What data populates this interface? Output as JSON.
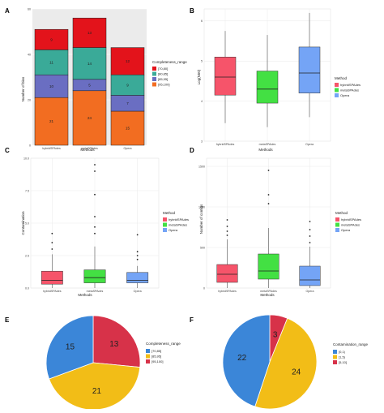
{
  "chart_data": [
    {
      "panel": "A",
      "type": "bar",
      "stacked": true,
      "categories": [
        "hybridSPAdes",
        "metaSPAdes",
        "Opera"
      ],
      "xlabel": "Methods",
      "ylabel": "Number of bins",
      "ylim": [
        0,
        60
      ],
      "yticks": [
        0,
        20,
        40,
        60
      ],
      "legend_title": "Completeness_range",
      "legend_position": "right",
      "series": [
        {
          "name": "[95,100]",
          "color": "#f26d21",
          "values": [
            21,
            24,
            15
          ]
        },
        {
          "name": "[85,95]",
          "color": "#6a6ec2",
          "values": [
            10,
            5,
            7
          ]
        },
        {
          "name": "[80,85]",
          "color": "#3aaa98",
          "values": [
            11,
            14,
            9
          ]
        },
        {
          "name": "[70,80]",
          "color": "#e3131b",
          "values": [
            9,
            13,
            12
          ]
        }
      ]
    },
    {
      "panel": "B",
      "type": "box",
      "categories": [
        "hybridSPAdes",
        "metaSPAdes",
        "Opera"
      ],
      "xlabel": "Methods",
      "ylabel": "Log(N50)",
      "ylim": [
        3,
        6.3
      ],
      "yticks": [
        3,
        4,
        5,
        6
      ],
      "legend_title": "Method",
      "legend_position": "right",
      "boxes": [
        {
          "name": "hybridSPAdes",
          "color": "#f6546a",
          "min": 3.45,
          "q1": 4.15,
          "median": 4.6,
          "q3": 5.1,
          "max": 5.75
        },
        {
          "name": "metaSPAdes",
          "color": "#43e043",
          "min": 3.35,
          "q1": 3.95,
          "median": 4.3,
          "q3": 4.75,
          "max": 5.65
        },
        {
          "name": "Opera",
          "color": "#74a4f6",
          "min": 3.6,
          "q1": 4.2,
          "median": 4.7,
          "q3": 5.35,
          "max": 6.2
        }
      ]
    },
    {
      "panel": "C",
      "type": "box",
      "categories": [
        "hybridSPAdes",
        "metaSPAdes",
        "Opera"
      ],
      "xlabel": "Methods",
      "ylabel": "Contamination",
      "ylim": [
        0,
        10
      ],
      "yticks": [
        "0.0",
        "2.5",
        "5.0",
        "7.5",
        "10.0"
      ],
      "legend_title": "Method",
      "legend_position": "right",
      "boxes": [
        {
          "name": "hybridSPAdes",
          "color": "#f6546a",
          "min": 0,
          "q1": 0.3,
          "median": 0.6,
          "q3": 1.3,
          "max": 2.6,
          "outliers": [
            3.0,
            3.5,
            4.2
          ]
        },
        {
          "name": "metaSPAdes",
          "color": "#43e043",
          "min": 0,
          "q1": 0.4,
          "median": 0.8,
          "q3": 1.4,
          "max": 3.2,
          "outliers": [
            4.2,
            4.7,
            5.5,
            7.2,
            9.0,
            9.5
          ]
        },
        {
          "name": "Opera",
          "color": "#74a4f6",
          "min": 0,
          "q1": 0.4,
          "median": 0.6,
          "q3": 1.2,
          "max": 1.7,
          "outliers": [
            2.2,
            2.5,
            2.8,
            4.1
          ]
        }
      ]
    },
    {
      "panel": "D",
      "type": "box",
      "categories": [
        "hybridSPAdes",
        "metaSPAdes",
        "Opera"
      ],
      "xlabel": "Methods",
      "ylabel": "Number of contigs",
      "ylim": [
        0,
        1600
      ],
      "yticks": [
        0,
        500,
        1000,
        1500
      ],
      "legend_title": "Method",
      "legend_position": "right",
      "boxes": [
        {
          "name": "hybridSPAdes",
          "color": "#f6546a",
          "min": 0,
          "q1": 70,
          "median": 170,
          "q3": 290,
          "max": 600,
          "outliers": [
            650,
            700,
            760,
            840
          ]
        },
        {
          "name": "metaSPAdes",
          "color": "#43e043",
          "min": 0,
          "q1": 110,
          "median": 210,
          "q3": 420,
          "max": 740,
          "outliers": [
            1040,
            1150,
            1450
          ]
        },
        {
          "name": "Opera",
          "color": "#74a4f6",
          "min": 0,
          "q1": 30,
          "median": 100,
          "q3": 270,
          "max": 510,
          "outliers": [
            560,
            640,
            720,
            820
          ]
        }
      ]
    },
    {
      "panel": "E",
      "type": "pie",
      "legend_title": "Completeness_range",
      "legend_position": "right",
      "slices": [
        {
          "name": "[70,85]",
          "value": 15,
          "color": "#3b86d8"
        },
        {
          "name": "[85,95]",
          "value": 21,
          "color": "#f2bd17"
        },
        {
          "name": "[95,100]",
          "value": 13,
          "color": "#d73249"
        }
      ]
    },
    {
      "panel": "F",
      "type": "pie",
      "legend_title": "Contamination_range",
      "legend_position": "right",
      "slices": [
        {
          "name": "[0,1)",
          "value": 22,
          "color": "#3b86d8"
        },
        {
          "name": "[1,5)",
          "value": 24,
          "color": "#f2bd17"
        },
        {
          "name": "[5,10]",
          "value": 3,
          "color": "#d73249"
        }
      ]
    }
  ]
}
